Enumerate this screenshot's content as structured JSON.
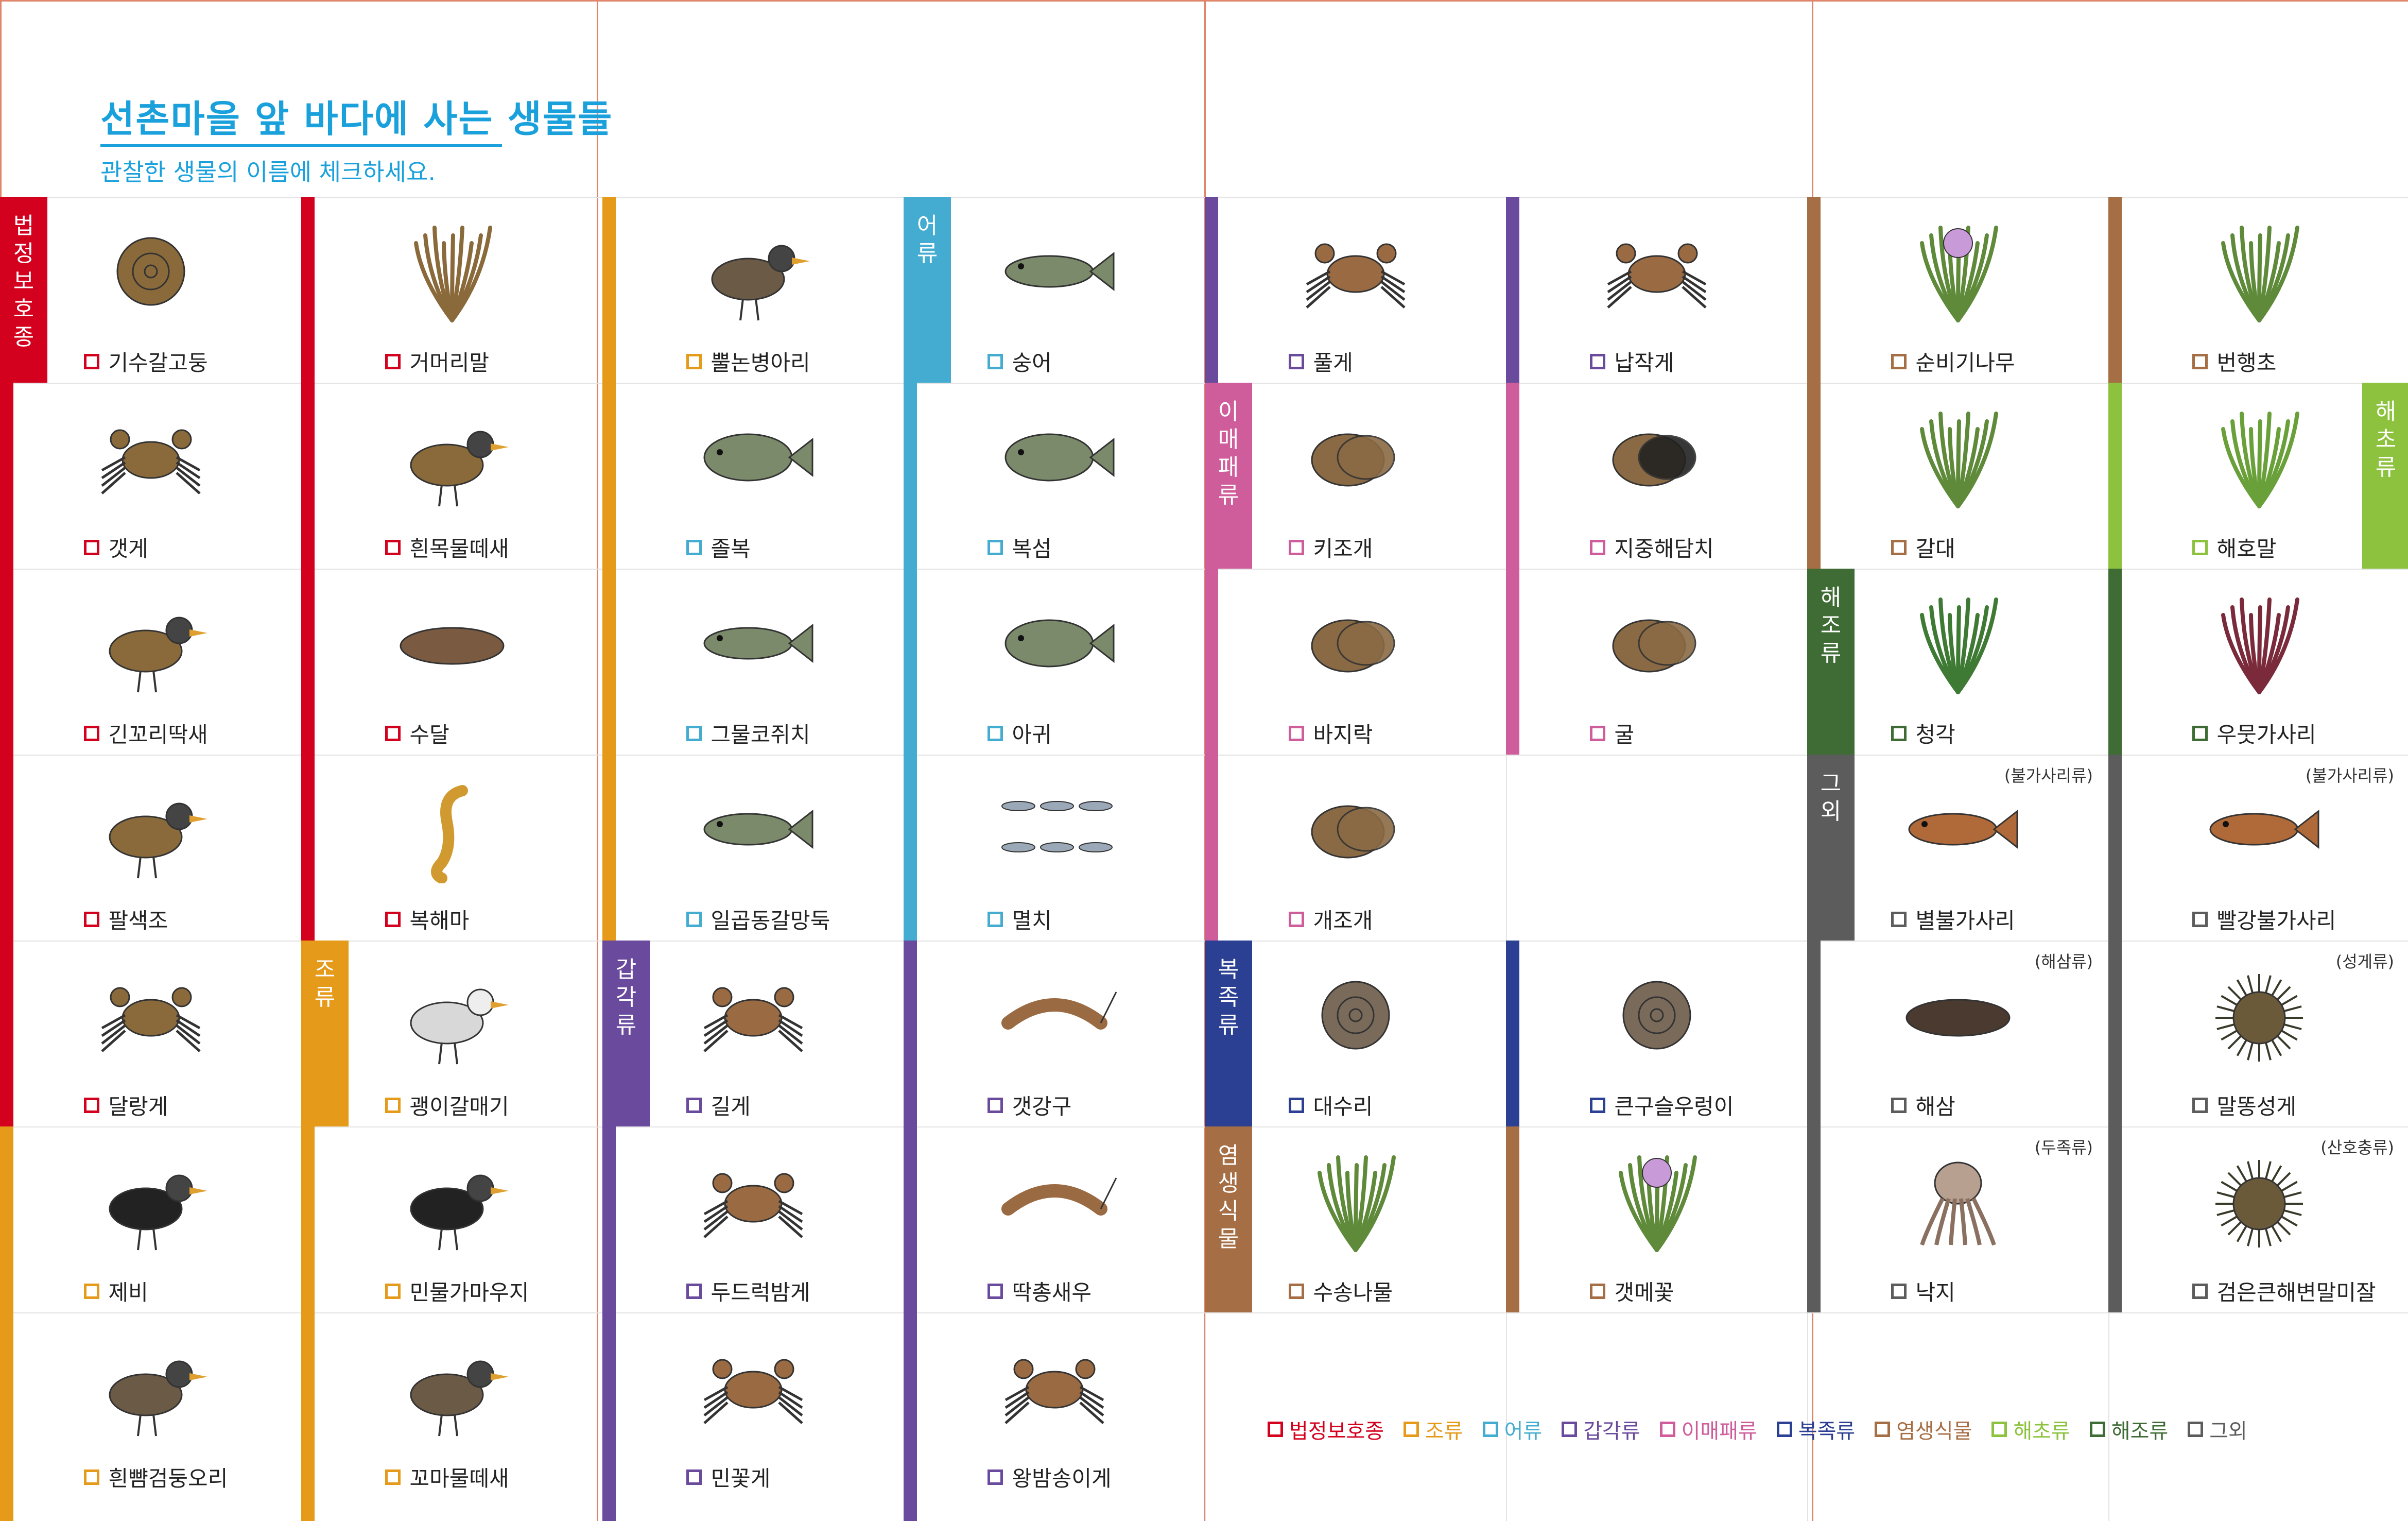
{
  "title": "선촌마을 앞 바다에 사는 생물들",
  "subtitle": "관찰한 생물의 이름에 체크하세요.",
  "colors": {
    "protected": "#d3001e",
    "birds": "#e59a1a",
    "fish": "#43acd0",
    "crustaceans": "#6a4a9c",
    "bivalves": "#cf5c9b",
    "gastropods": "#2b3f93",
    "halophytes": "#a66e44",
    "seaweed_green": "#8cc23e",
    "seaweed_dark": "#3f6c35",
    "others": "#5c5c5c",
    "accent": "#1aa1dc",
    "fold": "#e0846a"
  },
  "categories": {
    "protected": "법정보호종",
    "birds": "조류",
    "fish": "어류",
    "crustaceans": "갑각류",
    "bivalves": "이매패류",
    "gastropods": "복족류",
    "halophytes": "염생식물",
    "seaweed": "해초류",
    "algae": "해조류",
    "others": "그외"
  },
  "species": [
    {
      "name": "기수갈고둥",
      "category": "protected",
      "icon": "snail-shell-icon"
    },
    {
      "name": "거머리말",
      "category": "protected",
      "icon": "seagrass-icon"
    },
    {
      "name": "뿔논병아리",
      "category": "birds",
      "icon": "grebe-icon"
    },
    {
      "name": "숭어",
      "category": "fish",
      "icon": "mullet-fish-icon"
    },
    {
      "name": "풀게",
      "category": "crustaceans",
      "icon": "crab-icon"
    },
    {
      "name": "납작게",
      "category": "crustaceans",
      "icon": "crab-icon"
    },
    {
      "name": "순비기나무",
      "category": "halophytes",
      "icon": "flowering-shrub-icon"
    },
    {
      "name": "번행초",
      "category": "halophytes",
      "icon": "succulent-plant-icon"
    },
    {
      "name": "갯게",
      "category": "protected",
      "icon": "crab-icon"
    },
    {
      "name": "흰목물떼새",
      "category": "protected",
      "icon": "plover-icon"
    },
    {
      "name": "졸복",
      "category": "fish",
      "icon": "pufferfish-icon"
    },
    {
      "name": "복섬",
      "category": "fish",
      "icon": "pufferfish-icon"
    },
    {
      "name": "키조개",
      "category": "bivalves",
      "icon": "pen-shell-icon"
    },
    {
      "name": "지중해담치",
      "category": "bivalves",
      "icon": "mussel-icon"
    },
    {
      "name": "갈대",
      "category": "halophytes",
      "icon": "reed-icon"
    },
    {
      "name": "해호말",
      "category": "seaweed",
      "icon": "seagrass-leaf-icon"
    },
    {
      "name": "긴꼬리딱새",
      "category": "protected",
      "icon": "paradise-flycatcher-icon"
    },
    {
      "name": "수달",
      "category": "protected",
      "icon": "otter-icon"
    },
    {
      "name": "그물코쥐치",
      "category": "fish",
      "icon": "filefish-icon"
    },
    {
      "name": "아귀",
      "category": "fish",
      "icon": "anglerfish-icon"
    },
    {
      "name": "바지락",
      "category": "bivalves",
      "icon": "clam-icon"
    },
    {
      "name": "굴",
      "category": "bivalves",
      "icon": "oyster-icon"
    },
    {
      "name": "청각",
      "category": "algae",
      "icon": "green-algae-icon"
    },
    {
      "name": "우뭇가사리",
      "category": "algae",
      "icon": "red-algae-icon"
    },
    {
      "name": "팔색조",
      "category": "protected",
      "icon": "pitta-bird-icon"
    },
    {
      "name": "복해마",
      "category": "protected",
      "icon": "seahorse-icon"
    },
    {
      "name": "일곱동갈망둑",
      "category": "fish",
      "icon": "goby-icon"
    },
    {
      "name": "멸치",
      "category": "fish",
      "icon": "anchovy-school-icon"
    },
    {
      "name": "개조개",
      "category": "bivalves",
      "icon": "clam-icon"
    },
    {
      "name": "별불가사리",
      "category": "others",
      "icon": "starfish-icon",
      "note": "(불가사리류)"
    },
    {
      "name": "빨강불가사리",
      "category": "others",
      "icon": "starfish-icon",
      "note": "(불가사리류)"
    },
    {
      "name": "달랑게",
      "category": "protected",
      "icon": "crab-icon"
    },
    {
      "name": "괭이갈매기",
      "category": "birds",
      "icon": "gull-icon"
    },
    {
      "name": "길게",
      "category": "crustaceans",
      "icon": "crab-icon"
    },
    {
      "name": "갯강구",
      "category": "crustaceans",
      "icon": "sea-slater-icon"
    },
    {
      "name": "대수리",
      "category": "gastropods",
      "icon": "rock-shell-icon"
    },
    {
      "name": "큰구슬우렁이",
      "category": "gastropods",
      "icon": "moon-snail-icon"
    },
    {
      "name": "해삼",
      "category": "others",
      "icon": "sea-cucumber-icon",
      "note": "(해삼류)"
    },
    {
      "name": "말똥성게",
      "category": "others",
      "icon": "sea-urchin-icon",
      "note": "(성게류)"
    },
    {
      "name": "제비",
      "category": "birds",
      "icon": "swallow-icon"
    },
    {
      "name": "민물가마우지",
      "category": "birds",
      "icon": "cormorant-icon"
    },
    {
      "name": "두드럭밤게",
      "category": "crustaceans",
      "icon": "crab-icon"
    },
    {
      "name": "딱총새우",
      "category": "crustaceans",
      "icon": "shrimp-icon"
    },
    {
      "name": "수송나물",
      "category": "halophytes",
      "icon": "saltwort-icon"
    },
    {
      "name": "갯메꽃",
      "category": "halophytes",
      "icon": "beach-morning-glory-icon"
    },
    {
      "name": "낙지",
      "category": "others",
      "icon": "octopus-icon",
      "note": "(두족류)"
    },
    {
      "name": "검은큰해변말미잘",
      "category": "others",
      "icon": "sea-anemone-icon",
      "note": "(산호충류)"
    },
    {
      "name": "흰뺨검둥오리",
      "category": "birds",
      "icon": "duck-icon"
    },
    {
      "name": "꼬마물떼새",
      "category": "birds",
      "icon": "plover-icon"
    },
    {
      "name": "민꽃게",
      "category": "crustaceans",
      "icon": "crab-icon"
    },
    {
      "name": "왕밤송이게",
      "category": "crustaceans",
      "icon": "crab-icon"
    }
  ],
  "legend": [
    {
      "key": "protected",
      "label": "법정보호종"
    },
    {
      "key": "birds",
      "label": "조류"
    },
    {
      "key": "fish",
      "label": "어류"
    },
    {
      "key": "crustaceans",
      "label": "갑각류"
    },
    {
      "key": "bivalves",
      "label": "이매패류"
    },
    {
      "key": "gastropods",
      "label": "복족류"
    },
    {
      "key": "halophytes",
      "label": "염생식물"
    },
    {
      "key": "seaweed_green",
      "label": "해초류"
    },
    {
      "key": "seaweed_dark",
      "label": "해조류"
    },
    {
      "key": "others",
      "label": "그외"
    }
  ]
}
